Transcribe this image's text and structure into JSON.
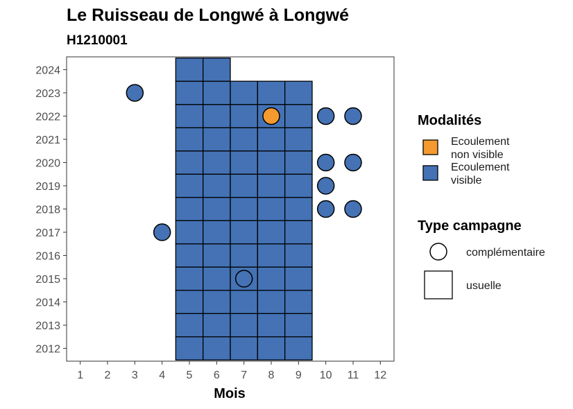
{
  "chart_data": {
    "type": "heatmap",
    "title": "Le Ruisseau de Longwé à Longwé",
    "subtitle": "H1210001",
    "xlabel": "Mois",
    "ylabel": "",
    "x_ticks": [
      "1",
      "2",
      "3",
      "4",
      "5",
      "6",
      "7",
      "8",
      "9",
      "10",
      "11",
      "12"
    ],
    "y_ticks": [
      "2012",
      "2013",
      "2014",
      "2015",
      "2016",
      "2017",
      "2018",
      "2019",
      "2020",
      "2021",
      "2022",
      "2023",
      "2024"
    ],
    "xlim": [
      0.5,
      12.5
    ],
    "ylim": [
      2011.45,
      2024.55
    ],
    "grid": false,
    "legend_placement": "right",
    "colors": {
      "Ecoulement visible": "#4472b4",
      "Ecoulement non visible": "#f59a2f"
    },
    "legend_modalites": {
      "title": "Modalités",
      "entries": [
        {
          "key": "Ecoulement non visible",
          "label_lines": [
            "Ecoulement",
            "non visible"
          ],
          "color": "#f59a2f"
        },
        {
          "key": "Ecoulement visible",
          "label_lines": [
            "Ecoulement",
            "visible"
          ],
          "color": "#4472b4"
        }
      ]
    },
    "legend_type": {
      "title": "Type campagne",
      "entries": [
        {
          "shape": "circle",
          "label": "complémentaire"
        },
        {
          "shape": "square",
          "label": "usuelle"
        }
      ]
    },
    "series": [
      {
        "name": "usuelle",
        "shape": "square",
        "points": [
          {
            "month": 5,
            "year": 2012,
            "m": "Ecoulement visible"
          },
          {
            "month": 6,
            "year": 2012,
            "m": "Ecoulement visible"
          },
          {
            "month": 7,
            "year": 2012,
            "m": "Ecoulement visible"
          },
          {
            "month": 8,
            "year": 2012,
            "m": "Ecoulement visible"
          },
          {
            "month": 9,
            "year": 2012,
            "m": "Ecoulement visible"
          },
          {
            "month": 5,
            "year": 2013,
            "m": "Ecoulement visible"
          },
          {
            "month": 6,
            "year": 2013,
            "m": "Ecoulement visible"
          },
          {
            "month": 7,
            "year": 2013,
            "m": "Ecoulement visible"
          },
          {
            "month": 8,
            "year": 2013,
            "m": "Ecoulement visible"
          },
          {
            "month": 9,
            "year": 2013,
            "m": "Ecoulement visible"
          },
          {
            "month": 5,
            "year": 2014,
            "m": "Ecoulement visible"
          },
          {
            "month": 6,
            "year": 2014,
            "m": "Ecoulement visible"
          },
          {
            "month": 7,
            "year": 2014,
            "m": "Ecoulement visible"
          },
          {
            "month": 8,
            "year": 2014,
            "m": "Ecoulement visible"
          },
          {
            "month": 9,
            "year": 2014,
            "m": "Ecoulement visible"
          },
          {
            "month": 5,
            "year": 2015,
            "m": "Ecoulement visible"
          },
          {
            "month": 6,
            "year": 2015,
            "m": "Ecoulement visible"
          },
          {
            "month": 7,
            "year": 2015,
            "m": "Ecoulement visible"
          },
          {
            "month": 8,
            "year": 2015,
            "m": "Ecoulement visible"
          },
          {
            "month": 9,
            "year": 2015,
            "m": "Ecoulement visible"
          },
          {
            "month": 5,
            "year": 2016,
            "m": "Ecoulement visible"
          },
          {
            "month": 6,
            "year": 2016,
            "m": "Ecoulement visible"
          },
          {
            "month": 7,
            "year": 2016,
            "m": "Ecoulement visible"
          },
          {
            "month": 8,
            "year": 2016,
            "m": "Ecoulement visible"
          },
          {
            "month": 9,
            "year": 2016,
            "m": "Ecoulement visible"
          },
          {
            "month": 5,
            "year": 2017,
            "m": "Ecoulement visible"
          },
          {
            "month": 6,
            "year": 2017,
            "m": "Ecoulement visible"
          },
          {
            "month": 7,
            "year": 2017,
            "m": "Ecoulement visible"
          },
          {
            "month": 8,
            "year": 2017,
            "m": "Ecoulement visible"
          },
          {
            "month": 9,
            "year": 2017,
            "m": "Ecoulement visible"
          },
          {
            "month": 5,
            "year": 2018,
            "m": "Ecoulement visible"
          },
          {
            "month": 6,
            "year": 2018,
            "m": "Ecoulement visible"
          },
          {
            "month": 7,
            "year": 2018,
            "m": "Ecoulement visible"
          },
          {
            "month": 8,
            "year": 2018,
            "m": "Ecoulement visible"
          },
          {
            "month": 9,
            "year": 2018,
            "m": "Ecoulement visible"
          },
          {
            "month": 5,
            "year": 2019,
            "m": "Ecoulement visible"
          },
          {
            "month": 6,
            "year": 2019,
            "m": "Ecoulement visible"
          },
          {
            "month": 7,
            "year": 2019,
            "m": "Ecoulement visible"
          },
          {
            "month": 8,
            "year": 2019,
            "m": "Ecoulement visible"
          },
          {
            "month": 9,
            "year": 2019,
            "m": "Ecoulement visible"
          },
          {
            "month": 5,
            "year": 2020,
            "m": "Ecoulement visible"
          },
          {
            "month": 6,
            "year": 2020,
            "m": "Ecoulement visible"
          },
          {
            "month": 7,
            "year": 2020,
            "m": "Ecoulement visible"
          },
          {
            "month": 8,
            "year": 2020,
            "m": "Ecoulement visible"
          },
          {
            "month": 9,
            "year": 2020,
            "m": "Ecoulement visible"
          },
          {
            "month": 5,
            "year": 2021,
            "m": "Ecoulement visible"
          },
          {
            "month": 6,
            "year": 2021,
            "m": "Ecoulement visible"
          },
          {
            "month": 7,
            "year": 2021,
            "m": "Ecoulement visible"
          },
          {
            "month": 8,
            "year": 2021,
            "m": "Ecoulement visible"
          },
          {
            "month": 9,
            "year": 2021,
            "m": "Ecoulement visible"
          },
          {
            "month": 5,
            "year": 2022,
            "m": "Ecoulement visible"
          },
          {
            "month": 6,
            "year": 2022,
            "m": "Ecoulement visible"
          },
          {
            "month": 7,
            "year": 2022,
            "m": "Ecoulement visible"
          },
          {
            "month": 8,
            "year": 2022,
            "m": "Ecoulement visible"
          },
          {
            "month": 9,
            "year": 2022,
            "m": "Ecoulement visible"
          },
          {
            "month": 5,
            "year": 2023,
            "m": "Ecoulement visible"
          },
          {
            "month": 6,
            "year": 2023,
            "m": "Ecoulement visible"
          },
          {
            "month": 7,
            "year": 2023,
            "m": "Ecoulement visible"
          },
          {
            "month": 8,
            "year": 2023,
            "m": "Ecoulement visible"
          },
          {
            "month": 9,
            "year": 2023,
            "m": "Ecoulement visible"
          },
          {
            "month": 5,
            "year": 2024,
            "m": "Ecoulement visible"
          },
          {
            "month": 6,
            "year": 2024,
            "m": "Ecoulement visible"
          }
        ]
      },
      {
        "name": "complémentaire",
        "shape": "circle",
        "points": [
          {
            "month": 3,
            "year": 2023,
            "m": "Ecoulement visible"
          },
          {
            "month": 8,
            "year": 2022,
            "m": "Ecoulement non visible"
          },
          {
            "month": 10,
            "year": 2022,
            "m": "Ecoulement visible"
          },
          {
            "month": 11,
            "year": 2022,
            "m": "Ecoulement visible"
          },
          {
            "month": 10,
            "year": 2020,
            "m": "Ecoulement visible"
          },
          {
            "month": 11,
            "year": 2020,
            "m": "Ecoulement visible"
          },
          {
            "month": 10,
            "year": 2019,
            "m": "Ecoulement visible"
          },
          {
            "month": 10,
            "year": 2018,
            "m": "Ecoulement visible"
          },
          {
            "month": 11,
            "year": 2018,
            "m": "Ecoulement visible"
          },
          {
            "month": 4,
            "year": 2017,
            "m": "Ecoulement visible"
          },
          {
            "month": 7,
            "year": 2015,
            "m": "Ecoulement visible"
          }
        ]
      }
    ]
  }
}
